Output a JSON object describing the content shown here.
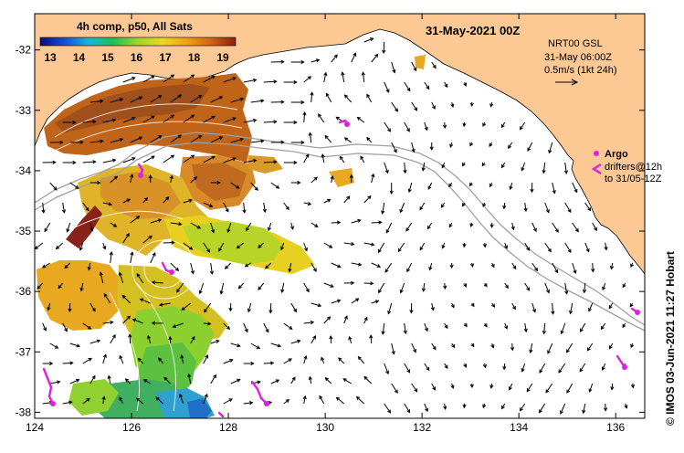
{
  "title": "31-May-2021 00Z",
  "colorbar": {
    "title": "4h comp, p50, All Sats",
    "ticks": [
      "13",
      "14",
      "15",
      "16",
      "17",
      "18",
      "19"
    ],
    "stops": [
      "#0a0a80",
      "#1450d8",
      "#19b6d8",
      "#22c050",
      "#9ed430",
      "#e8d820",
      "#f0a018",
      "#d26414",
      "#8c1e10"
    ]
  },
  "current_legend": {
    "line1": "NRT00 GSL",
    "line2": "31-May 06:00Z",
    "line3": "0.5m/s (1kt 24h)"
  },
  "argo_legend": {
    "argo": "Argo",
    "drifters": "drifters@12h",
    "to_date": "to 31/05-12Z"
  },
  "credit": "© IMOS 03-Jun-2021 11:27 Hobart",
  "axes": {
    "x_ticks": [
      "124",
      "126",
      "128",
      "130",
      "132",
      "134",
      "136"
    ],
    "y_ticks": [
      "-32",
      "-33",
      "-34",
      "-35",
      "-36",
      "-37",
      "-38"
    ],
    "lon_range": [
      124,
      136.6
    ],
    "lat_range": [
      -31.4,
      -38.1
    ]
  },
  "colors": {
    "land": "#fcc894",
    "ocean": "#ffffff",
    "isobath": "#a0a0a0",
    "argo": "#e020e0"
  }
}
